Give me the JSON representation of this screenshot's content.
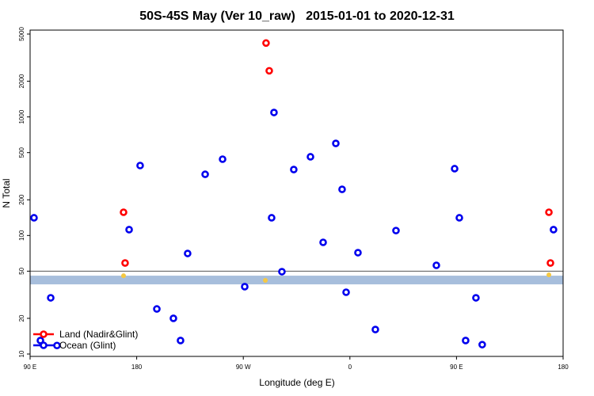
{
  "chart_data": {
    "type": "scatter",
    "title": "50S-45S May (Ver 10_raw)   2015-01-01 to 2020-12-31",
    "x_label": "Longitude (deg E)",
    "y_label": "N Total",
    "ylog": true,
    "xlim": [
      90,
      540
    ],
    "ylim": [
      9.55,
      5400
    ],
    "xticks": [
      {
        "value": 90,
        "label": "90 E"
      },
      180,
      {
        "value": 270,
        "label": "90 W"
      },
      {
        "value": 360,
        "label": "0"
      },
      {
        "value": 450,
        "label": "90 E"
      },
      {
        "value": 540,
        "label": "180"
      }
    ],
    "yticks": [
      10,
      20,
      50,
      100,
      200,
      500,
      1000,
      2000,
      5000
    ],
    "hline": 50,
    "hline_color": "#555555",
    "band": [
      38.7,
      45.8
    ],
    "band_color": "#a7bedc",
    "legend_position": "bottom-left",
    "series": [
      {
        "name": "Land (Nadir&Glint)",
        "color": "#ff0000",
        "x": [
          289.2,
          291.9,
          168.9,
          170.2,
          528.0,
          529.3
        ],
        "values": [
          4200,
          2450,
          157,
          58.6,
          157,
          58.6
        ]
      },
      {
        "name": "Ocean (Glint)",
        "color": "#0000ee",
        "x": [
          93.3,
          107.4,
          98.7,
          112.7,
          173.6,
          182.9,
          197.0,
          211.0,
          217.0,
          223.0,
          237.8,
          252.5,
          271.2,
          293.9,
          295.9,
          302.6,
          312.6,
          326.7,
          337.4,
          348.1,
          353.4,
          356.8,
          366.8,
          381.5,
          398.9,
          433.0,
          448.4,
          452.4,
          457.7,
          466.4,
          471.7,
          531.9
        ],
        "values": [
          141,
          29.8,
          13.0,
          11.8,
          112,
          389,
          24.0,
          20.0,
          13.0,
          70.5,
          328,
          440,
          37.0,
          141,
          1090,
          49.5,
          360,
          461,
          87.5,
          598,
          245,
          33.2,
          71.6,
          16.1,
          110,
          56.0,
          366,
          141,
          13.0,
          29.8,
          12.0,
          112
        ]
      },
      {
        "color": "#f5c842",
        "x": [
          168.9,
          288.6,
          528.0
        ],
        "values": [
          45.8,
          41.8,
          46.6
        ]
      }
    ]
  }
}
